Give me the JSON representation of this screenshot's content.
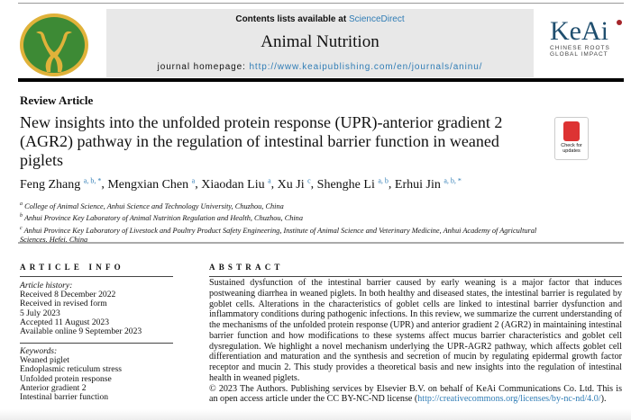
{
  "header": {
    "contents_prefix": "Contents lists available at ",
    "sciencedirect": "ScienceDirect",
    "journal": "Animal Nutrition",
    "homepage_prefix": "journal homepage: ",
    "homepage_url": "http://www.keaipublishing.com/en/journals/aninu/",
    "publisher_logo": "KeAi",
    "publisher_tagline1": "CHINESE ROOTS",
    "publisher_tagline2": "GLOBAL IMPACT",
    "check_updates": "Check for updates"
  },
  "article": {
    "type": "Review Article",
    "title": "New insights into the unfolded protein response (UPR)-anterior gradient 2 (AGR2) pathway in the regulation of intestinal barrier function in weaned piglets",
    "authors": [
      {
        "name": "Feng Zhang",
        "sup": "a, b, *"
      },
      {
        "name": "Mengxian Chen",
        "sup": "a"
      },
      {
        "name": "Xiaodan Liu",
        "sup": "a"
      },
      {
        "name": "Xu Ji",
        "sup": "c"
      },
      {
        "name": "Shenghe Li",
        "sup": "a, b"
      },
      {
        "name": "Erhui Jin",
        "sup": "a, b, *"
      }
    ],
    "affiliations": [
      {
        "sup": "a",
        "text": "College of Animal Science, Anhui Science and Technology University, Chuzhou, China"
      },
      {
        "sup": "b",
        "text": "Anhui Province Key Laboratory of Animal Nutrition Regulation and Health, Chuzhou, China"
      },
      {
        "sup": "c",
        "text": "Anhui Province Key Laboratory of Livestock and Poultry Product Safety Engineering, Institute of Animal Science and Veterinary Medicine, Anhui Academy of Agricultural Sciences, Hefei, China"
      }
    ]
  },
  "info": {
    "heading": "ARTICLE INFO",
    "history_label": "Article history:",
    "history": [
      "Received 8 December 2022",
      "Received in revised form",
      "5 July 2023",
      "Accepted 11 August 2023",
      "Available online 9 September 2023"
    ],
    "keywords_label": "Keywords:",
    "keywords": [
      "Weaned piglet",
      "Endoplasmic reticulum stress",
      "Unfolded protein response",
      "Anterior gradient 2",
      "Intestinal barrier function"
    ]
  },
  "abstract": {
    "heading": "ABSTRACT",
    "text": "Sustained dysfunction of the intestinal barrier caused by early weaning is a major factor that induces postweaning diarrhea in weaned piglets. In both healthy and diseased states, the intestinal barrier is regulated by goblet cells. Alterations in the characteristics of goblet cells are linked to intestinal barrier dysfunction and inflammatory conditions during pathogenic infections. In this review, we summarize the current understanding of the mechanisms of the unfolded protein response (UPR) and anterior gradient 2 (AGR2) in maintaining intestinal barrier function and how modifications to these systems affect mucus barrier characteristics and goblet cell dysregulation. We highlight a novel mechanism underlying the UPR-AGR2 pathway, which affects goblet cell differentiation and maturation and the synthesis and secretion of mucin by regulating epidermal growth factor receptor and mucin 2. This study provides a theoretical basis and new insights into the regulation of intestinal health in weaned piglets.",
    "copyright": "© 2023 The Authors. Publishing services by Elsevier B.V. on behalf of KeAi Communications Co. Ltd. This is an open access article under the CC BY-NC-ND license (",
    "license_url": "http://creativecommons.org/licenses/by-nc-nd/4.0/",
    "copyright_end": ")."
  },
  "colors": {
    "link": "#2f7cb5",
    "logo_green": "#3d8a35",
    "logo_gold": "#e0b23a",
    "keai_blue": "#1f4e6e"
  }
}
